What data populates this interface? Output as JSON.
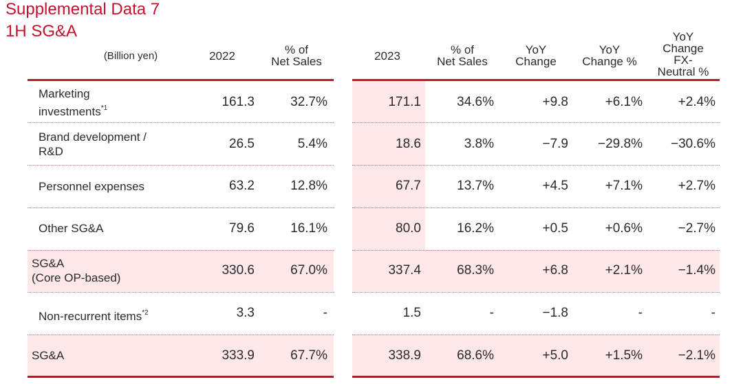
{
  "title": {
    "line1": "Supplemental Data 7",
    "line2": "1H SG&A"
  },
  "columns": {
    "unit": "(Billion yen)",
    "y2022": "2022",
    "pct2022": [
      "% of",
      "Net Sales"
    ],
    "y2023": "2023",
    "pct2023": [
      "% of",
      "Net Sales"
    ],
    "yoy": [
      "YoY",
      "Change"
    ],
    "yoy_pct": [
      "YoY",
      "Change %"
    ],
    "yoy_fx": [
      "YoY",
      "Change",
      "FX-",
      "Neutral %"
    ]
  },
  "rows": [
    {
      "label": [
        "Marketing",
        "investments"
      ],
      "note": "*1",
      "v2022": "161.3",
      "p2022": "32.7%",
      "v2023": "171.1",
      "p2023": "34.6%",
      "yoy": "+9.8",
      "yoy_pct": "+6.1%",
      "fx": "+2.4%"
    },
    {
      "label": [
        "Brand development /",
        "R&D"
      ],
      "note": "",
      "v2022": "26.5",
      "p2022": "5.4%",
      "v2023": "18.6",
      "p2023": "3.8%",
      "yoy": "−7.9",
      "yoy_pct": "−29.8%",
      "fx": "−30.6%"
    },
    {
      "label": [
        "Personnel expenses"
      ],
      "note": "",
      "v2022": "63.2",
      "p2022": "12.8%",
      "v2023": "67.7",
      "p2023": "13.7%",
      "yoy": "+4.5",
      "yoy_pct": "+7.1%",
      "fx": "+2.7%"
    },
    {
      "label": [
        "Other SG&A"
      ],
      "note": "",
      "v2022": "79.6",
      "p2022": "16.1%",
      "v2023": "80.0",
      "p2023": "16.2%",
      "yoy": "+0.5",
      "yoy_pct": "+0.6%",
      "fx": "−2.7%"
    },
    {
      "label": [
        "SG&A",
        "(Core OP-based)"
      ],
      "note": "",
      "v2022": "330.6",
      "p2022": "67.0%",
      "v2023": "337.4",
      "p2023": "68.3%",
      "yoy": "+6.8",
      "yoy_pct": "+2.1%",
      "fx": "−1.4%"
    },
    {
      "label": [
        "Non-recurrent items"
      ],
      "note": "*2",
      "v2022": "3.3",
      "p2022": "-",
      "v2023": "1.5",
      "p2023": "-",
      "yoy": "−1.8",
      "yoy_pct": "-",
      "fx": "-"
    },
    {
      "label": [
        "SG&A"
      ],
      "note": "",
      "v2022": "333.9",
      "p2022": "67.7%",
      "v2023": "338.9",
      "p2023": "68.6%",
      "yoy": "+5.0",
      "yoy_pct": "+1.5%",
      "fx": "−2.1%"
    }
  ],
  "colors": {
    "accent": "#c8102e",
    "highlight": "#fde7e9"
  }
}
